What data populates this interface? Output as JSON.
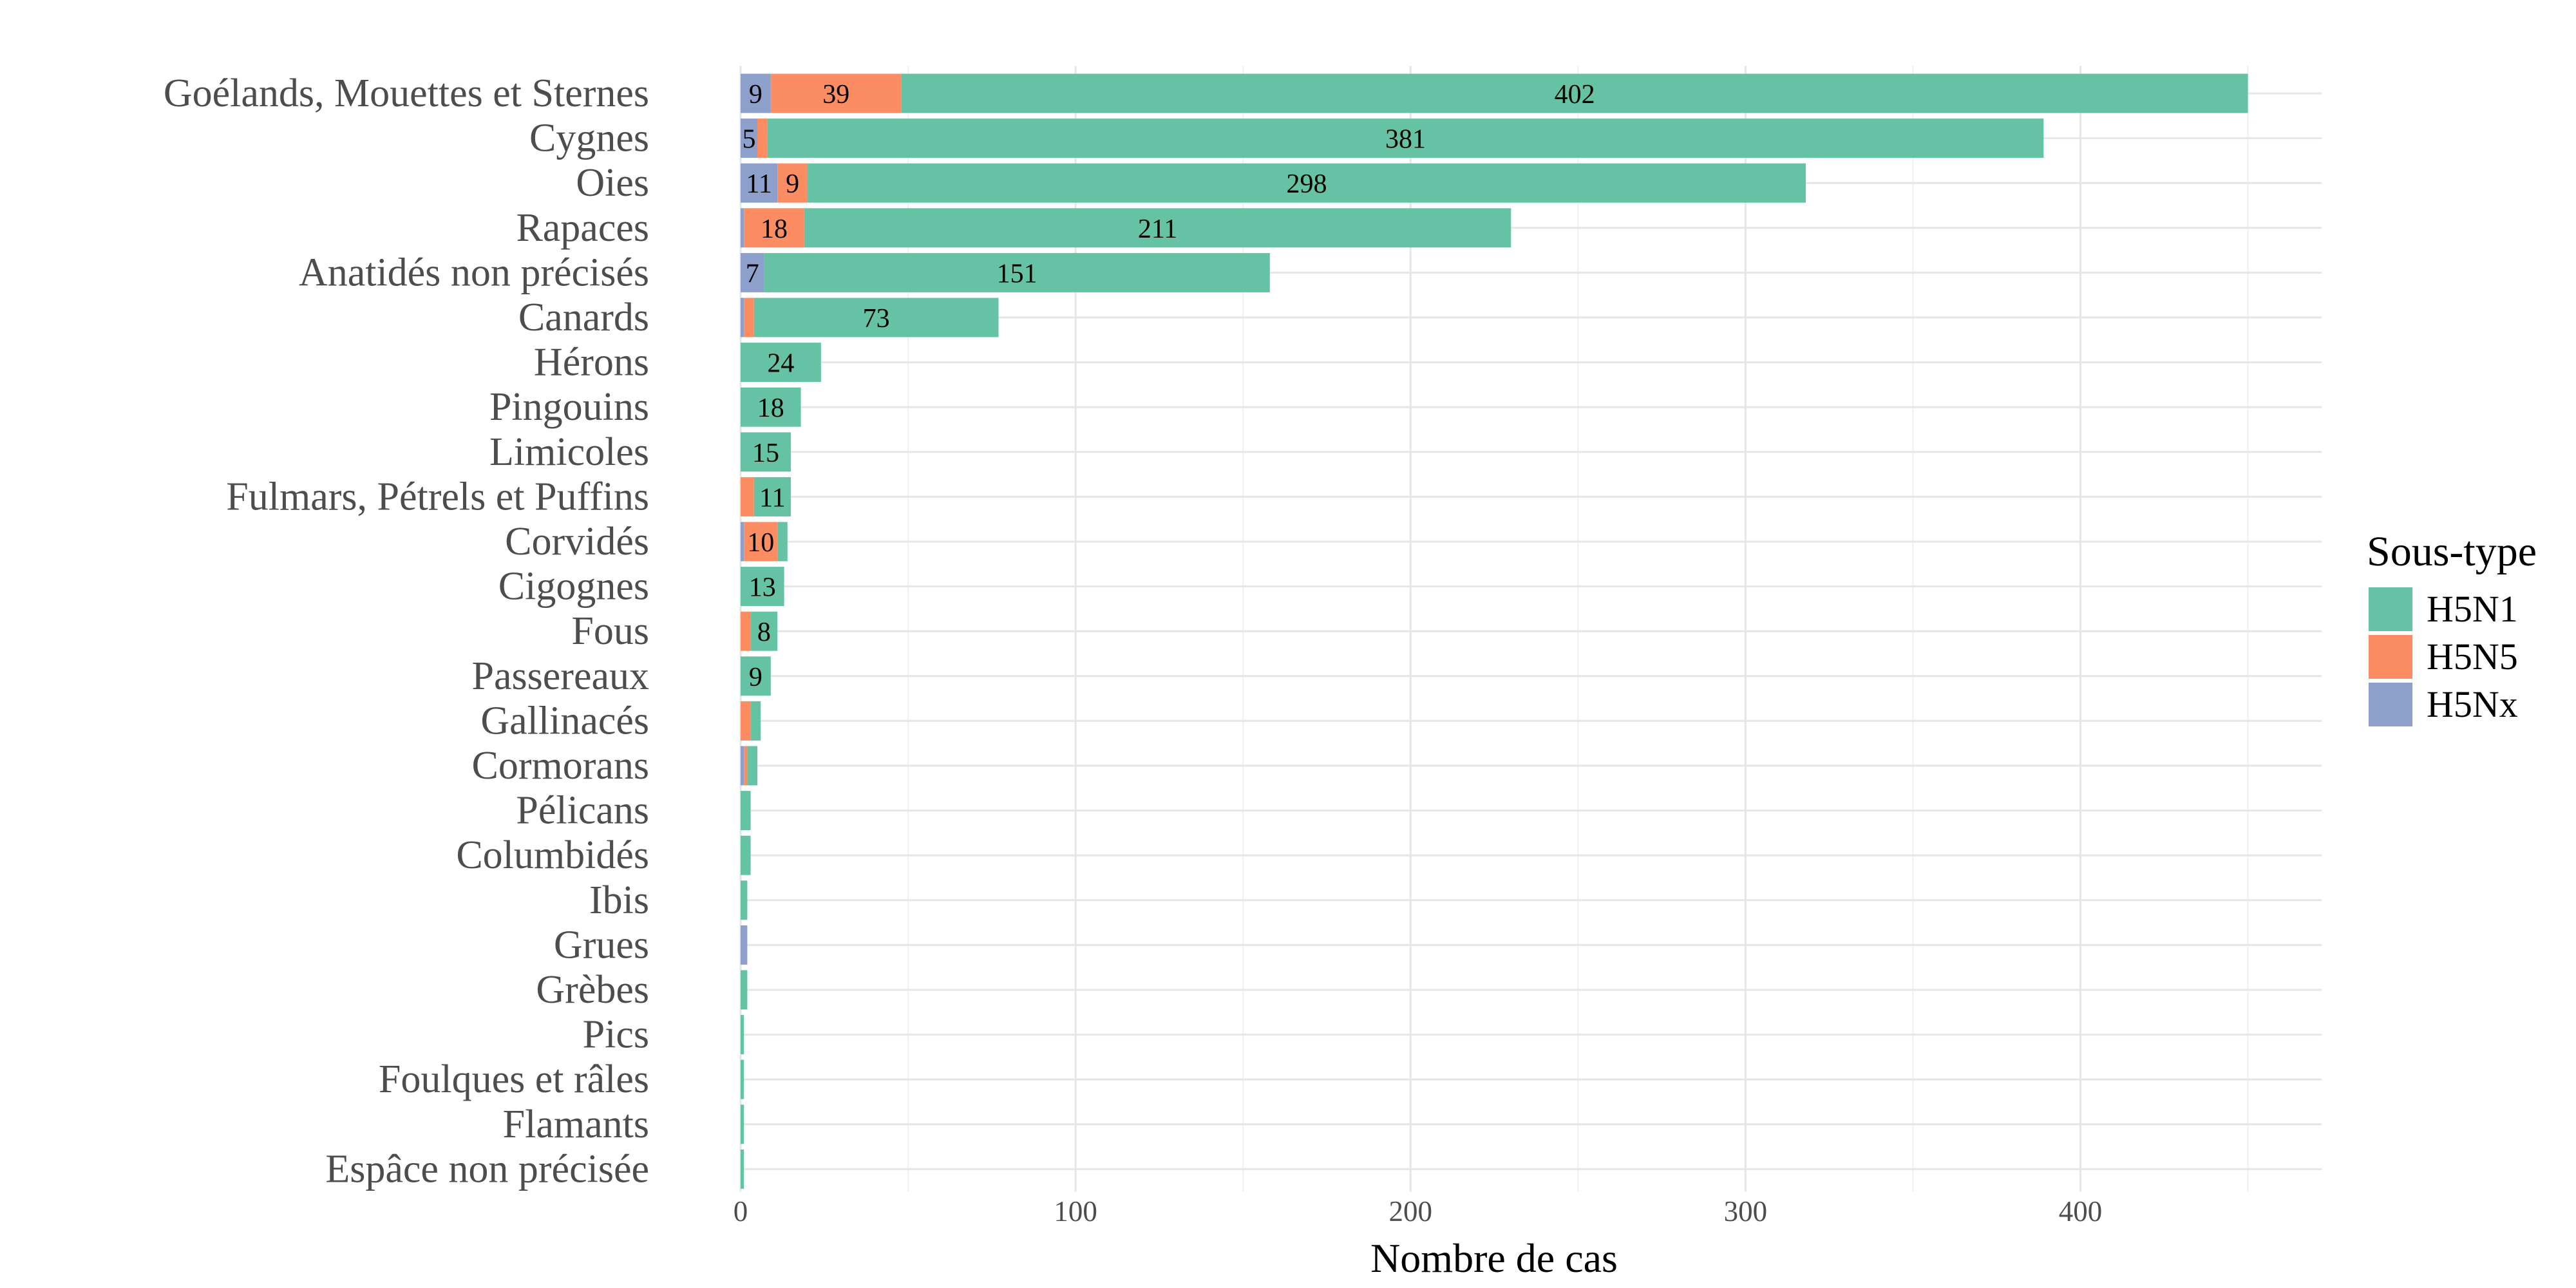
{
  "chart_data": {
    "type": "bar",
    "orientation": "horizontal",
    "stacked": true,
    "xlabel": "Nombre de cas",
    "ylabel": "",
    "xlim": [
      0,
      472
    ],
    "xticks": [
      0,
      100,
      200,
      300,
      400
    ],
    "grid": true,
    "legend_position": "right",
    "categories": [
      "Goélands, Mouettes et Sternes",
      "Cygnes",
      "Oies",
      "Rapaces",
      "Anatidés non précisés",
      "Canards",
      "Hérons",
      "Pingouins",
      "Limicoles",
      "Fulmars, Pétrels et Puffins",
      "Corvidés",
      "Cigognes",
      "Fous",
      "Passereaux",
      "Gallinacés",
      "Cormorans",
      "Pélicans",
      "Columbidés",
      "Ibis",
      "Grues",
      "Grèbes",
      "Pics",
      "Foulques et râles",
      "Flamants",
      "Espâce non précisée"
    ],
    "series": [
      {
        "name": "H5Nx",
        "color": "#8DA0CB",
        "values": [
          9,
          5,
          11,
          1,
          7,
          1,
          0,
          0,
          0,
          0,
          1,
          0,
          0,
          0,
          0,
          1,
          0,
          0,
          0,
          2,
          0,
          0,
          0,
          0,
          0
        ],
        "labels": [
          "9",
          "5",
          "11",
          "",
          "7",
          "",
          "",
          "",
          "",
          "",
          "",
          "",
          "",
          "",
          "",
          "",
          "",
          "",
          "",
          "",
          "",
          "",
          "",
          "",
          ""
        ]
      },
      {
        "name": "H5N5",
        "color": "#FC8D62",
        "values": [
          39,
          3,
          9,
          18,
          0,
          3,
          0,
          0,
          0,
          4,
          10,
          0,
          3,
          0,
          3,
          1,
          0,
          0,
          0,
          0,
          0,
          0,
          0,
          0,
          0
        ],
        "labels": [
          "39",
          "",
          "9",
          "18",
          "",
          "",
          "",
          "",
          "",
          "",
          "10",
          "",
          "",
          "",
          "",
          "",
          "",
          "",
          "",
          "",
          "",
          "",
          "",
          "",
          ""
        ]
      },
      {
        "name": "H5N1",
        "color": "#66C2A5",
        "values": [
          402,
          381,
          298,
          211,
          151,
          73,
          24,
          18,
          15,
          11,
          3,
          13,
          8,
          9,
          3,
          3,
          3,
          3,
          2,
          0,
          2,
          1,
          1,
          1,
          1
        ],
        "labels": [
          "402",
          "381",
          "298",
          "211",
          "151",
          "73",
          "24",
          "18",
          "15",
          "11",
          "",
          "13",
          "8",
          "9",
          "",
          "",
          "",
          "",
          "",
          "",
          "",
          "",
          "",
          "",
          ""
        ]
      }
    ]
  },
  "legend": {
    "title": "Sous-type",
    "items": [
      {
        "name": "H5N1",
        "color": "#66C2A5"
      },
      {
        "name": "H5N5",
        "color": "#FC8D62"
      },
      {
        "name": "H5Nx",
        "color": "#8DA0CB"
      }
    ]
  }
}
